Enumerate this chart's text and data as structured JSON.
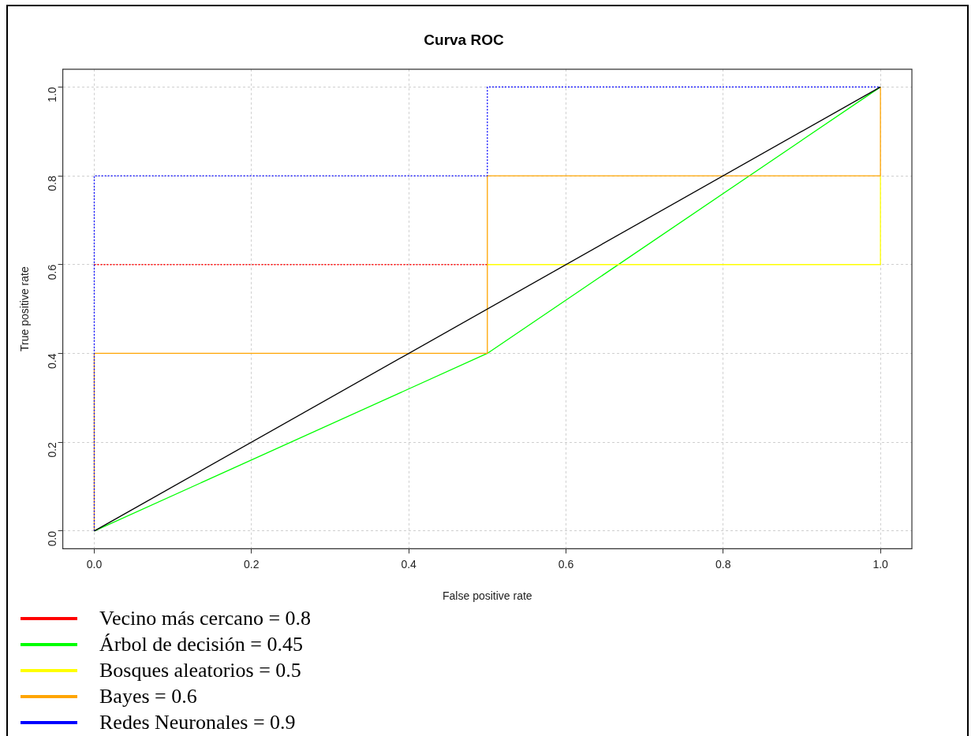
{
  "chart_data": {
    "type": "line",
    "title": "Curva ROC",
    "xlabel": "False positive rate",
    "ylabel": "True positive rate",
    "xlim": [
      -0.04,
      1.04
    ],
    "ylim": [
      -0.04,
      1.04
    ],
    "xticks": [
      {
        "value": 0,
        "label": "0.0"
      },
      {
        "value": 0.2,
        "label": "0.2"
      },
      {
        "value": 0.4,
        "label": "0.4"
      },
      {
        "value": 0.6,
        "label": "0.6"
      },
      {
        "value": 0.8,
        "label": "0.8"
      },
      {
        "value": 1,
        "label": "1.0"
      }
    ],
    "yticks": [
      {
        "value": 0,
        "label": "0.0"
      },
      {
        "value": 0.2,
        "label": "0.2"
      },
      {
        "value": 0.4,
        "label": "0.4"
      },
      {
        "value": 0.6,
        "label": "0.6"
      },
      {
        "value": 0.8,
        "label": "0.8"
      },
      {
        "value": 1,
        "label": "1.0"
      }
    ],
    "grid": true,
    "legend": "bottom",
    "marker": "none",
    "series": [
      {
        "name": "Vecino más cercano = 0.8",
        "color": "#ff0000",
        "line_style": "dotted",
        "x": [
          0,
          0.5
        ],
        "values": [
          0.6,
          0.6
        ]
      },
      {
        "name": "Árbol de decisión = 0.45",
        "color": "#00ff00",
        "line_style": "solid",
        "x": [
          0,
          0.5,
          1
        ],
        "values": [
          0,
          0.4,
          1
        ]
      },
      {
        "name": "Bosques aleatorios = 0.5",
        "color": "#ffff00",
        "line_style": "solid",
        "x": [
          0.5,
          1,
          1
        ],
        "values": [
          0.6,
          0.6,
          0.8
        ]
      },
      {
        "name": "Bayes = 0.6",
        "color": "#ffa500",
        "line_style": "solid",
        "x": [
          0,
          0,
          0.5,
          0.5,
          1,
          1
        ],
        "values": [
          0,
          0.4,
          0.4,
          0.8,
          0.8,
          1
        ]
      },
      {
        "name": "Redes Neuronales = 0.9",
        "color": "#0000ff",
        "line_style": "dotted",
        "x": [
          0,
          0,
          0.5,
          0.5,
          1
        ],
        "values": [
          0,
          0.8,
          0.8,
          1,
          1
        ]
      },
      {
        "color": "#000000",
        "line_style": "solid",
        "x": [
          0,
          1
        ],
        "values": [
          0,
          1
        ]
      }
    ]
  }
}
